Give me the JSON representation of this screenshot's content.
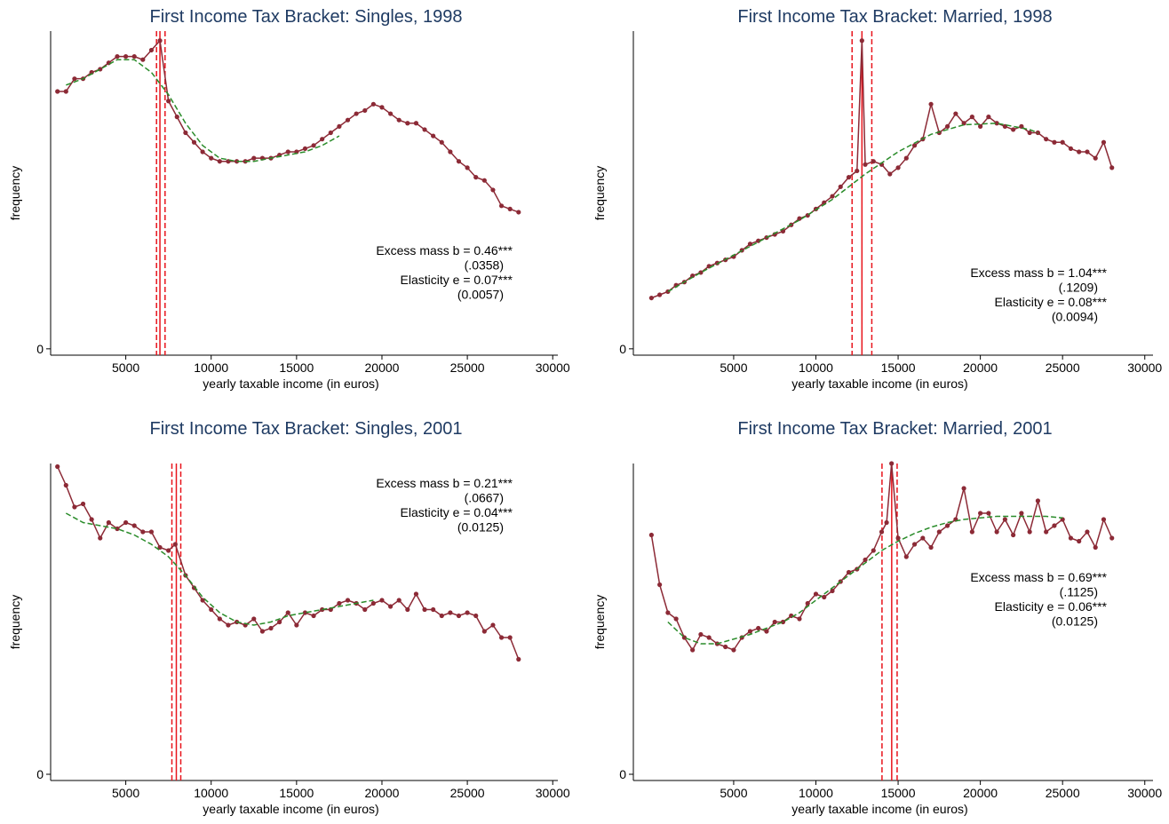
{
  "chart_data": [
    {
      "type": "line",
      "title": "First Income Tax Bracket: Singles, 1998",
      "x_label": "yearly taxable income (in euros)",
      "y_label": "frequency",
      "xlim": [
        600,
        30300
      ],
      "ylim": [
        -2,
        100
      ],
      "xticks": [
        5000,
        10000,
        15000,
        20000,
        25000,
        30000
      ],
      "yticks": [
        0
      ],
      "color": "#8c2a36",
      "fit_color": "#2a8c2a",
      "cutoff_color": "#e8141c",
      "x": [
        1000,
        1500,
        2000,
        2500,
        3000,
        3500,
        4000,
        4500,
        5000,
        5500,
        6000,
        6500,
        7000,
        7500,
        8000,
        8500,
        9000,
        9500,
        10000,
        10500,
        11000,
        11500,
        12000,
        12500,
        13000,
        13500,
        14000,
        14500,
        15000,
        15500,
        16000,
        16500,
        17000,
        17500,
        18000,
        18500,
        19000,
        19500,
        20000,
        20500,
        21000,
        21500,
        22000,
        22500,
        23000,
        23500,
        24000,
        24500,
        25000,
        25500,
        26000,
        26500,
        27000,
        27500,
        28000
      ],
      "values": [
        81,
        81,
        85,
        85,
        87,
        88,
        90,
        92,
        92,
        92,
        91,
        94,
        97,
        78,
        73,
        68,
        65,
        62,
        60,
        59,
        59,
        59,
        59,
        60,
        60,
        60,
        61,
        62,
        62,
        63,
        64,
        66,
        68,
        70,
        72,
        74,
        75,
        77,
        76,
        74,
        72,
        71,
        71,
        69,
        67,
        65,
        62,
        59,
        57,
        54,
        53,
        50,
        45,
        44,
        43
      ],
      "fit_x": [
        1500,
        2500,
        3500,
        4500,
        5500,
        6500,
        7500,
        8500,
        9500,
        10500,
        11500,
        12500,
        13500,
        14500,
        15500,
        16500,
        17500
      ],
      "fit_values": [
        83,
        85,
        88,
        91,
        91,
        87,
        80,
        71,
        64,
        60,
        59,
        59,
        60,
        61,
        62,
        64,
        67
      ],
      "cutoffs": [
        {
          "value": 6800,
          "style": "dashed"
        },
        {
          "value": 7000,
          "style": "solid"
        },
        {
          "value": 7300,
          "style": "dashed"
        }
      ],
      "annotations": [
        "Excess mass b = 0.46***",
        "(.0358)",
        "Elasticity e = 0.07***",
        "(0.0057)"
      ]
    },
    {
      "type": "line",
      "title": "First Income Tax Bracket: Married, 1998",
      "x_label": "yearly taxable income (in euros)",
      "y_label": "frequency",
      "xlim": [
        -1100,
        30500
      ],
      "ylim": [
        -2,
        100
      ],
      "xticks": [
        5000,
        10000,
        15000,
        20000,
        25000,
        30000
      ],
      "yticks": [
        0
      ],
      "color": "#8c2a36",
      "fit_color": "#2a8c2a",
      "cutoff_color": "#e8141c",
      "x": [
        0,
        500,
        1000,
        1500,
        2000,
        2500,
        3000,
        3500,
        4000,
        4500,
        5000,
        5500,
        6000,
        6500,
        7000,
        7500,
        8000,
        8500,
        9000,
        9500,
        10000,
        10500,
        11000,
        11500,
        12000,
        12500,
        12800,
        13000,
        13500,
        14000,
        14500,
        15000,
        15500,
        16000,
        16500,
        17000,
        17500,
        18000,
        18500,
        19000,
        19500,
        20000,
        20500,
        21000,
        21500,
        22000,
        22500,
        23000,
        23500,
        24000,
        24500,
        25000,
        25500,
        26000,
        26500,
        27000,
        27500,
        28000
      ],
      "values": [
        16,
        17,
        18,
        20,
        21,
        23,
        24,
        26,
        27,
        28,
        29,
        31,
        33,
        34,
        35,
        36,
        37,
        39,
        41,
        42,
        44,
        46,
        48,
        51,
        54,
        56,
        97,
        58,
        59,
        58,
        55,
        57,
        60,
        64,
        66,
        77,
        68,
        70,
        74,
        71,
        73,
        70,
        73,
        71,
        70,
        69,
        70,
        68,
        68,
        66,
        65,
        65,
        63,
        62,
        62,
        60,
        65,
        57
      ],
      "fit_x": [
        1000,
        3000,
        5000,
        7000,
        9000,
        11000,
        13000,
        15000,
        17000,
        19000,
        21000,
        23000,
        23500
      ],
      "fit_values": [
        18,
        24,
        29.5,
        35,
        40.5,
        47,
        55,
        62,
        67.5,
        70.5,
        71,
        69,
        68
      ],
      "cutoffs": [
        {
          "value": 12200,
          "style": "dashed"
        },
        {
          "value": 12800,
          "style": "solid"
        },
        {
          "value": 13400,
          "style": "dashed"
        }
      ],
      "annotations": [
        "Excess mass b = 1.04***",
        "(.1209)",
        "Elasticity e = 0.08***",
        "(0.0094)"
      ]
    },
    {
      "type": "line",
      "title": "First Income Tax Bracket: Singles, 2001",
      "x_label": "yearly taxable income (in euros)",
      "y_label": "frequency",
      "xlim": [
        600,
        30300
      ],
      "ylim": [
        -2,
        100
      ],
      "xticks": [
        5000,
        10000,
        15000,
        20000,
        25000,
        30000
      ],
      "yticks": [
        0
      ],
      "color": "#8c2a36",
      "fit_color": "#2a8c2a",
      "cutoff_color": "#e8141c",
      "x": [
        1000,
        1500,
        2000,
        2500,
        3000,
        3500,
        4000,
        4500,
        5000,
        5500,
        6000,
        6500,
        7000,
        7500,
        7900,
        8500,
        9000,
        9500,
        10000,
        10500,
        11000,
        11500,
        12000,
        12500,
        13000,
        13500,
        14000,
        14500,
        15000,
        15500,
        16000,
        16500,
        17000,
        17500,
        18000,
        18500,
        19000,
        19500,
        20000,
        20500,
        21000,
        21500,
        22000,
        22500,
        23000,
        23500,
        24000,
        24500,
        25000,
        25500,
        26000,
        26500,
        27000,
        27500,
        28000
      ],
      "values": [
        99,
        93,
        86,
        87,
        82,
        76,
        81,
        79,
        81,
        80,
        78,
        78,
        73,
        72,
        74,
        64,
        60,
        56,
        53,
        50,
        48,
        49,
        48,
        50,
        46,
        47,
        49,
        52,
        48,
        52,
        51,
        53,
        53,
        55,
        56,
        55,
        53,
        55,
        56,
        54,
        56,
        53,
        58,
        53,
        53,
        51,
        52,
        51,
        52,
        51,
        46,
        48,
        44,
        44,
        37
      ],
      "fit_x": [
        1500,
        2500,
        3500,
        4500,
        5500,
        6500,
        7500,
        8500,
        9500,
        10500,
        11500,
        12500,
        13500,
        14500,
        15500,
        16500,
        17500,
        18500,
        19500
      ],
      "fit_values": [
        84,
        81,
        80,
        79,
        77,
        74,
        70,
        64,
        57,
        52,
        49,
        48,
        49,
        51,
        52,
        53,
        54,
        55,
        56
      ],
      "cutoffs": [
        {
          "value": 7700,
          "style": "dashed"
        },
        {
          "value": 7960,
          "style": "solid"
        },
        {
          "value": 8220,
          "style": "dashed"
        }
      ],
      "annotations": [
        "Excess mass b = 0.21***",
        "(.0667)",
        "Elasticity e = 0.04***",
        "(0.0125)"
      ]
    },
    {
      "type": "line",
      "title": "First Income Tax Bracket: Married, 2001",
      "x_label": "yearly taxable income (in euros)",
      "y_label": "frequency",
      "xlim": [
        -1100,
        30500
      ],
      "ylim": [
        -2,
        100
      ],
      "xticks": [
        5000,
        10000,
        15000,
        20000,
        25000,
        30000
      ],
      "yticks": [
        0
      ],
      "color": "#8c2a36",
      "fit_color": "#2a8c2a",
      "cutoff_color": "#e8141c",
      "x": [
        0,
        500,
        1000,
        1500,
        2000,
        2500,
        3000,
        3500,
        4000,
        4500,
        5000,
        5500,
        6000,
        6500,
        7000,
        7500,
        8000,
        8500,
        9000,
        9500,
        10000,
        10500,
        11000,
        11500,
        12000,
        12500,
        13000,
        13500,
        14000,
        14300,
        14600,
        15000,
        15500,
        16000,
        16500,
        17000,
        17500,
        18000,
        18500,
        19000,
        19500,
        20000,
        20500,
        21000,
        21500,
        22000,
        22500,
        23000,
        23500,
        24000,
        24500,
        25000,
        25500,
        26000,
        26500,
        27000,
        27500,
        28000
      ],
      "values": [
        77,
        61,
        52,
        50,
        44,
        40,
        45,
        44,
        42,
        41,
        40,
        44,
        46,
        47,
        46,
        49,
        49,
        51,
        50,
        55,
        58,
        57,
        59,
        62,
        65,
        66,
        69,
        72,
        78,
        81,
        100,
        76,
        70,
        74,
        76,
        73,
        78,
        80,
        82,
        92,
        78,
        84,
        84,
        78,
        82,
        77,
        84,
        78,
        88,
        78,
        80,
        82,
        76,
        75,
        78,
        73,
        82,
        76
      ],
      "fit_x": [
        1000,
        2000,
        3000,
        4000,
        5000,
        6000,
        7000,
        8000,
        9000,
        10000,
        11000,
        12000,
        13000,
        14000,
        15000,
        16000,
        17000,
        18000,
        19000,
        20000,
        21000,
        22000,
        23000,
        24000,
        25000
      ],
      "fit_values": [
        49,
        44,
        42,
        42,
        43.5,
        45,
        47,
        49,
        52,
        56,
        60,
        64,
        68,
        72,
        75,
        77.5,
        79.5,
        81,
        82,
        82.5,
        83,
        83,
        83,
        83,
        82.5
      ],
      "cutoffs": [
        {
          "value": 14020,
          "style": "dashed"
        },
        {
          "value": 14610,
          "style": "solid"
        },
        {
          "value": 14940,
          "style": "dashed"
        }
      ],
      "annotations": [
        "Excess mass b = 0.69***",
        "(.1125)",
        "Elasticity e = 0.06***",
        "(0.0125)"
      ]
    }
  ]
}
